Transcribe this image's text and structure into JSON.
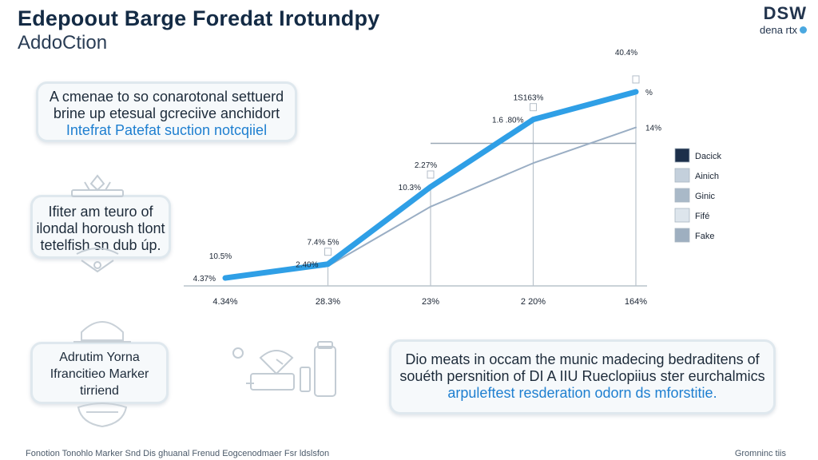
{
  "header": {
    "title": "Edepoout Barge Foredat Irotundpy",
    "subtitle": "AddoCtion",
    "brand_main": "DSW",
    "brand_sub": "dena  rtx"
  },
  "cards": {
    "card1": {
      "line1": "A cmenae to so conarotonal  settuerd",
      "line2": "brine up etesual gcreciive anchidort",
      "line3": "Intefrat Patefat suction notcqiiel"
    },
    "card2": {
      "line1": "Ifiter am teuro of",
      "line2": "ilondal horoush tlont",
      "line3": "tetelfish sn dub úp."
    },
    "card3": {
      "line1": "Adrutim Yorna",
      "line2": "Ifrancitieo Marker",
      "line3": "tirriend"
    },
    "card4": {
      "line1": "Dio meats in occam the munic madecing bedraditens of",
      "line2": "souéth persnition of DI A IIU Rueclopiius ster eurchalmics",
      "line3": "arpuleftest    resderation odorn ds    mforstitie."
    }
  },
  "footer": {
    "left": "Fonotion Tonohlo Marker Snd Dis ghuanal Frenud Eogcenodmaer Fsr ldslsfon",
    "right": "Gromninc tiis"
  },
  "colors": {
    "primary_line": "#2f9fe6",
    "secondary_line": "#9aaec4",
    "grid": "#b9c3cc",
    "card_bg": "#f6f9fb",
    "text_dark": "#142b45"
  },
  "chart_data": {
    "type": "line",
    "title": "",
    "xlabel": "",
    "ylabel": "",
    "categories": [
      "4.34%",
      "28.3%",
      "23%",
      "2 20%",
      "164%"
    ],
    "ylim": [
      0,
      100
    ],
    "series": [
      {
        "name": "Dacick",
        "values": [
          4,
          11,
          50,
          84,
          98
        ],
        "style": "primary"
      },
      {
        "name": "Ainich",
        "values": [
          4,
          10,
          40,
          62,
          80
        ],
        "style": "secondary"
      }
    ],
    "point_labels": [
      {
        "series": 0,
        "index": 0,
        "text": "4.37%",
        "side": "left"
      },
      {
        "series": 0,
        "index": 1,
        "text": "2.40%",
        "side": "left"
      },
      {
        "series": 0,
        "index": 1,
        "text": "7.4% 5%",
        "side": "above"
      },
      {
        "series": 0,
        "index": 2,
        "text": "10.3%",
        "side": "left"
      },
      {
        "series": 0,
        "index": 2,
        "text": "2.27%",
        "side": "above"
      },
      {
        "series": 0,
        "index": 3,
        "text": "1.6 .80%",
        "side": "left"
      },
      {
        "series": 0,
        "index": 3,
        "text": "1S163%",
        "side": "above"
      },
      {
        "series": 0,
        "index": 4,
        "text": "40.4%",
        "side": "top"
      },
      {
        "series": 0,
        "index": 4,
        "text": "%",
        "side": "right"
      },
      {
        "series": 1,
        "index": 4,
        "text": "14%",
        "side": "right"
      },
      {
        "series": 1,
        "index": 0,
        "text": "10.5%",
        "side": "above"
      }
    ],
    "legend": [
      {
        "label": "Dacick",
        "color": "#1c2f4a"
      },
      {
        "label": "Ainich",
        "color": "#c4d0dc"
      },
      {
        "label": "Ginic",
        "color": "#a9b9c8"
      },
      {
        "label": "Fifé",
        "color": "#dde5ec"
      },
      {
        "label": "Fake",
        "color": "#9eafc0"
      }
    ],
    "legend_position": "right",
    "grid": true,
    "reference_line": {
      "from_index": 2,
      "to_index": 4,
      "value": 72
    }
  }
}
